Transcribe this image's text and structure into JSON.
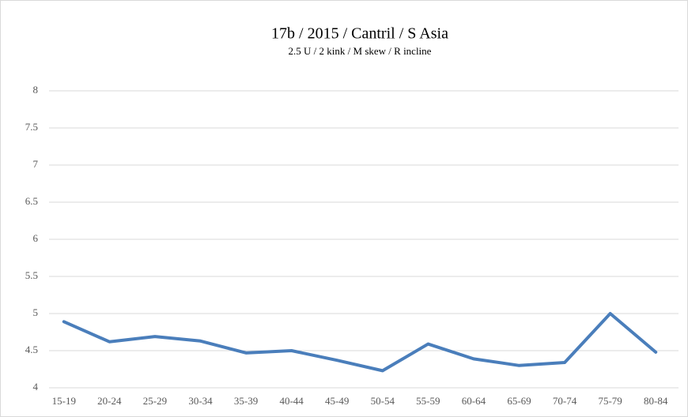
{
  "chart_data": {
    "type": "line",
    "title": "17b / 2015 / Cantril / S Asia",
    "subtitle": "2.5 U / 2 kink / M skew / R incline",
    "categories": [
      "15-19",
      "20-24",
      "25-29",
      "30-34",
      "35-39",
      "40-44",
      "45-49",
      "50-54",
      "55-59",
      "60-64",
      "65-69",
      "70-74",
      "75-79",
      "80-84"
    ],
    "series": [
      {
        "name": "S Asia",
        "color": "#4a7ebb",
        "values": [
          4.89,
          4.62,
          4.69,
          4.63,
          4.47,
          4.5,
          4.37,
          4.23,
          4.59,
          4.39,
          4.3,
          4.34,
          5.0,
          4.48
        ]
      }
    ],
    "ylim": [
      4,
      8
    ],
    "yticks": [
      4,
      4.5,
      5,
      5.5,
      6,
      6.5,
      7,
      7.5,
      8
    ],
    "grid": true
  }
}
